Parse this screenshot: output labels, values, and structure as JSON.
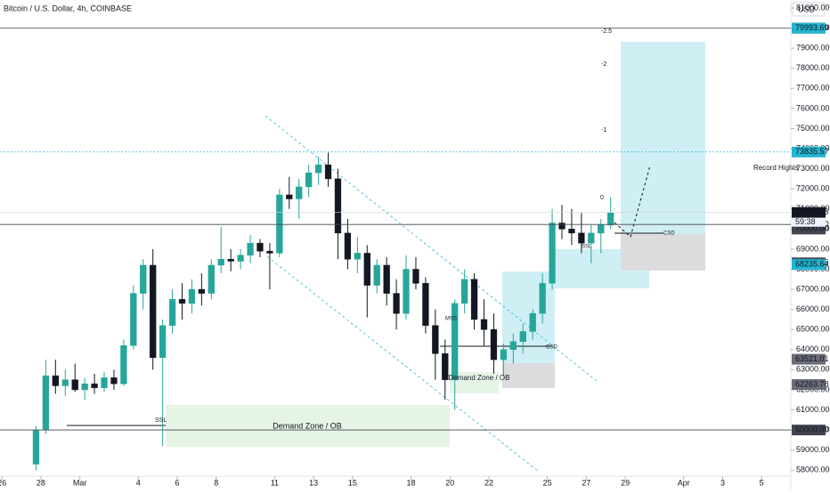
{
  "chart_data": {
    "type": "candlestick",
    "title": "Bitcoin / U.S. Dollar, 4h, COINBASE",
    "currency": "USD",
    "countdown": "59:38",
    "up_color": "#26a69a",
    "down_color": "#131722",
    "x": [
      -1.25,
      -0.75,
      -0.25,
      0.25,
      0.75,
      1.25,
      1.75,
      2.25,
      2.75,
      3.25,
      3.75,
      4.25,
      4.75,
      5.25,
      5.75,
      6.25,
      6.75,
      7.25,
      7.75,
      8.25,
      8.75,
      9.25,
      9.75,
      10.25,
      10.75,
      11.25,
      11.75,
      12.25,
      12.75,
      13.25,
      13.75,
      14.25,
      14.75,
      15.25,
      15.75,
      16.25,
      16.75,
      17.25,
      17.75,
      18.25,
      18.75,
      19.25,
      19.75,
      20.25,
      20.75,
      21.25,
      21.75,
      22.25,
      22.75,
      23.25,
      23.75,
      24.25,
      24.75,
      25.25,
      25.75,
      26.25,
      26.75,
      27.25,
      27.75,
      28.25
    ],
    "open": [
      58300,
      60000,
      62700,
      62200,
      62500,
      62000,
      62300,
      62100,
      62600,
      62300,
      64200,
      66800,
      68200,
      63600,
      65200,
      66500,
      66300,
      67000,
      66800,
      68200,
      68500,
      68400,
      68700,
      69300,
      68900,
      68800,
      71700,
      71500,
      72100,
      72800,
      73200,
      72500,
      69800,
      68500,
      68800,
      67200,
      68200,
      66800,
      65800,
      68000,
      67300,
      65200,
      63800,
      62500,
      66300,
      67500,
      65500,
      65000,
      63500,
      64000,
      64400,
      64900,
      65800,
      67300,
      70300,
      70000,
      69800,
      69300,
      69800,
      70200
    ],
    "high": [
      60200,
      63500,
      63500,
      63000,
      63300,
      62600,
      62800,
      62900,
      63000,
      64500,
      67200,
      68500,
      69000,
      65500,
      67000,
      67300,
      67500,
      67800,
      68500,
      70100,
      69000,
      69000,
      69700,
      69500,
      69300,
      72000,
      72600,
      72500,
      73200,
      73600,
      73800,
      73000,
      70500,
      69600,
      69200,
      68500,
      68600,
      67500,
      68700,
      68600,
      67600,
      66000,
      64500,
      66500,
      68000,
      67800,
      66500,
      65800,
      64300,
      64800,
      65300,
      66000,
      67800,
      71000,
      71200,
      71000,
      70800,
      70200,
      70500,
      71600
    ],
    "low": [
      58000,
      59800,
      61800,
      61700,
      61900,
      61500,
      61800,
      61900,
      62000,
      62200,
      64000,
      66000,
      63000,
      59200,
      64800,
      65500,
      65800,
      66200,
      66500,
      67800,
      67900,
      68000,
      68300,
      68600,
      67000,
      68600,
      71000,
      70500,
      71600,
      72200,
      72100,
      68500,
      68000,
      67800,
      65600,
      66800,
      66200,
      65000,
      65500,
      67000,
      64800,
      62500,
      61500,
      61000,
      65800,
      65000,
      64200,
      62800,
      62700,
      63300,
      63800,
      64500,
      65300,
      67000,
      69500,
      69200,
      68800,
      68300,
      68800,
      70000
    ],
    "close": [
      60000,
      62700,
      62200,
      62500,
      62000,
      62300,
      62100,
      62600,
      62300,
      64200,
      66800,
      68200,
      63600,
      65200,
      66500,
      66300,
      67000,
      66800,
      68200,
      68500,
      68400,
      68700,
      69300,
      68900,
      68800,
      71700,
      71500,
      72100,
      72800,
      73200,
      72500,
      69800,
      68500,
      68800,
      67200,
      68200,
      66800,
      65800,
      68000,
      67300,
      65200,
      63800,
      62500,
      66300,
      67500,
      65500,
      65000,
      63500,
      64000,
      64400,
      64900,
      65800,
      67300,
      70300,
      70000,
      69800,
      69300,
      69800,
      70200,
      70800
    ],
    "xlim": [
      -3.1,
      37.5
    ],
    "xticks": [
      {
        "value": -3,
        "label": "26"
      },
      {
        "value": -1,
        "label": "28"
      },
      {
        "value": 1,
        "label": "Mar"
      },
      4,
      6,
      8,
      11,
      13,
      15,
      18,
      20,
      22,
      25,
      27,
      29,
      {
        "value": 32,
        "label": "Apr"
      },
      {
        "value": 34,
        "label": "3"
      },
      {
        "value": 36,
        "label": "5"
      }
    ],
    "ylim": [
      57700,
      81400
    ],
    "yticks": [
      {
        "value": 58000,
        "label": "58000.00"
      },
      {
        "value": 59000,
        "label": "59000.00"
      },
      {
        "value": 60000,
        "label": "60000.00"
      },
      {
        "value": 61000,
        "label": "61000.00"
      },
      {
        "value": 62000,
        "label": "62000.00"
      },
      {
        "value": 63000,
        "label": "63000.00"
      },
      {
        "value": 64000,
        "label": "64000.00"
      },
      {
        "value": 65000,
        "label": "65000.00"
      },
      {
        "value": 66000,
        "label": "66000.00"
      },
      {
        "value": 67000,
        "label": "67000.00"
      },
      {
        "value": 68000,
        "label": "68000.00"
      },
      {
        "value": 69000,
        "label": "69000.00"
      },
      {
        "value": 70000,
        "label": "70000.00"
      },
      {
        "value": 71000,
        "label": "71000.00"
      },
      {
        "value": 72000,
        "label": "72000.00"
      },
      {
        "value": 73000,
        "label": "73000.00"
      },
      {
        "value": 74000,
        "label": "74000.00"
      },
      {
        "value": 75000,
        "label": "75000.00"
      },
      {
        "value": 76000,
        "label": "76000.00"
      },
      {
        "value": 77000,
        "label": "77000.00"
      },
      {
        "value": 78000,
        "label": "78000.00"
      },
      {
        "value": 79000,
        "label": "79000.00"
      },
      {
        "value": 80000,
        "label": "80000.00"
      },
      {
        "value": 81000,
        "label": "81000.00"
      }
    ],
    "levels": [
      {
        "value": 80000,
        "label": "80000.00",
        "color": "#434651",
        "line": "solid"
      },
      {
        "value": 79993.69,
        "label": "79993.69",
        "color": "#22b5d0"
      },
      {
        "value": 73835.57,
        "label": "73835.57",
        "color": "#22b5d0",
        "line": "dashed"
      },
      {
        "value": 70825.95,
        "label": "70825.95",
        "color": "#131722",
        "line": "faint"
      },
      {
        "value": 70229.3,
        "label": "70229.30",
        "color": "#434651",
        "line": "solid"
      },
      {
        "value": 70000,
        "label": "70000.00",
        "color": "#434651"
      },
      {
        "value": 68317.66,
        "label": "68317.66",
        "color": "#434651"
      },
      {
        "value": 68235.64,
        "label": "68235.64",
        "color": "#22b5d0"
      },
      {
        "value": 63521.01,
        "label": "63521.01",
        "color": "#6a6d78"
      },
      {
        "value": 62263.78,
        "label": "62263.78",
        "color": "#6a6d78"
      },
      {
        "value": 60000,
        "label": "60000.00",
        "color": "#434651",
        "line": "solid"
      }
    ],
    "annotations": [
      "Demand Zone / OB",
      "Demand Zone / OB",
      "SSL",
      "MSS",
      "CSD",
      "CSD",
      "SSL",
      "Record Hights",
      "-2.5",
      "-2",
      "-1",
      "0"
    ]
  }
}
